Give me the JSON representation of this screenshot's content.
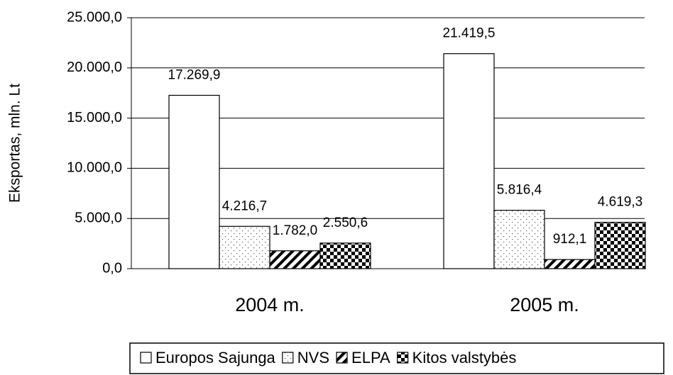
{
  "chart_data": {
    "type": "bar",
    "y_label": "Eksportas, mln. Lt",
    "categories": [
      "2004 m.",
      "2005 m."
    ],
    "series": [
      {
        "name": "Europos Sajunga",
        "values": [
          17269.9,
          21419.5
        ],
        "value_labels": [
          "17.269,9",
          "21.419,5"
        ]
      },
      {
        "name": "NVS",
        "values": [
          4216.7,
          5816.4
        ],
        "value_labels": [
          "4.216,7",
          "5.816,4"
        ]
      },
      {
        "name": "ELPA",
        "values": [
          1782.0,
          912.1
        ],
        "value_labels": [
          "1.782,0",
          "912,1"
        ]
      },
      {
        "name": "Kitos valstybės",
        "values": [
          2550.6,
          4619.3
        ],
        "value_labels": [
          "2.550,6",
          "4.619,3"
        ]
      }
    ],
    "ylim": [
      0,
      25000
    ],
    "yticks": [
      {
        "value": 0,
        "label": "0,0"
      },
      {
        "value": 5000,
        "label": "5.000,0"
      },
      {
        "value": 10000,
        "label": "10.000,0"
      },
      {
        "value": 15000,
        "label": "15.000,0"
      },
      {
        "value": 20000,
        "label": "20.000,0"
      },
      {
        "value": 25000,
        "label": "25.000,0"
      }
    ],
    "grid": true
  }
}
